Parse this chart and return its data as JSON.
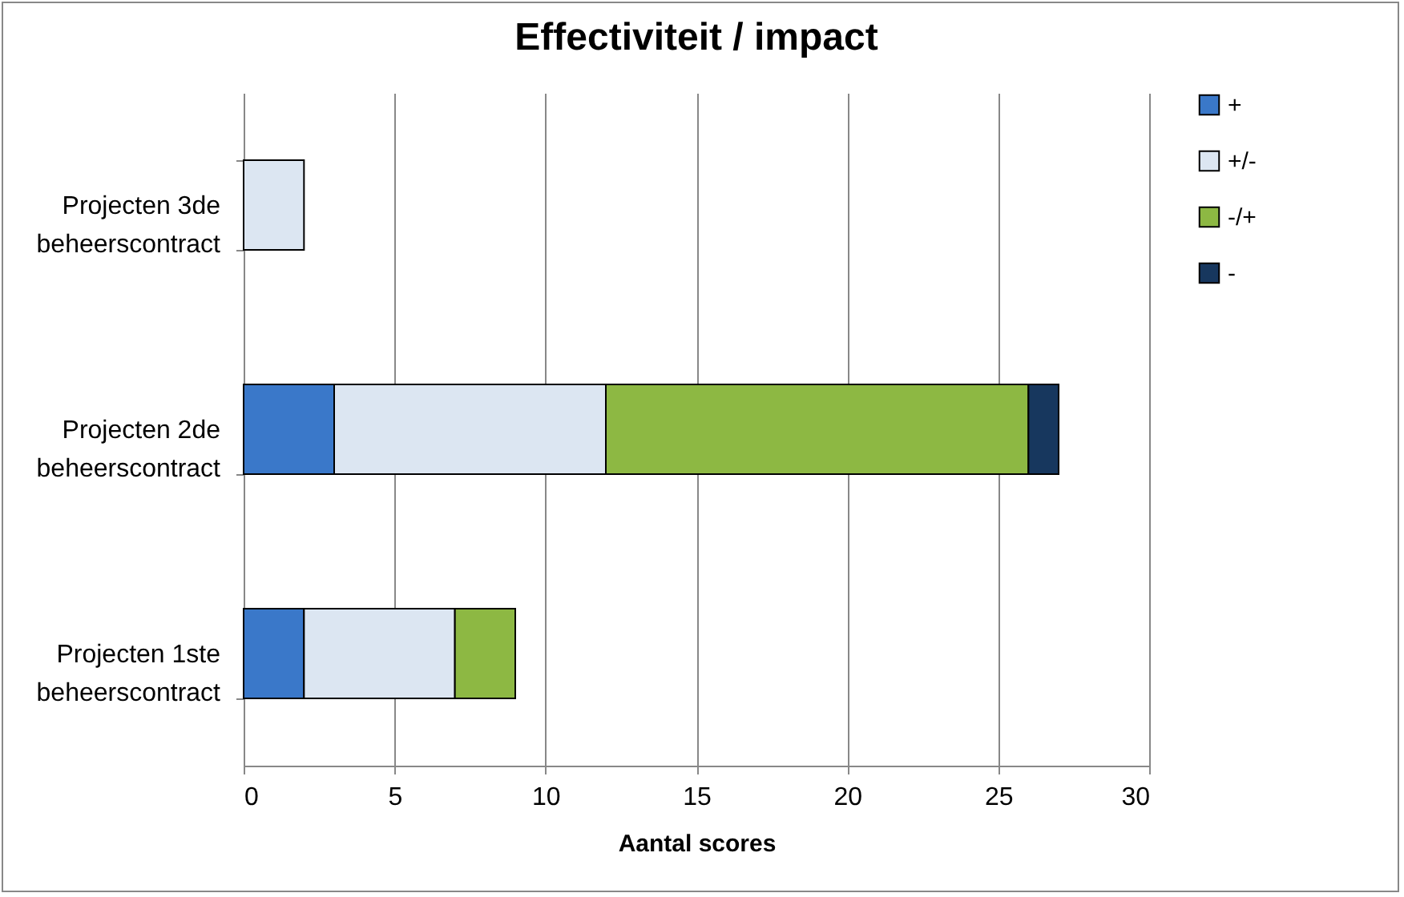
{
  "chart_data": {
    "type": "bar",
    "orientation": "horizontal",
    "stacked": true,
    "title": "Effectiviteit / impact",
    "xlabel": "Aantal scores",
    "categories": [
      "Projecten 3de beheerscontract",
      "Projecten 2de beheerscontract",
      "Projecten 1ste beheerscontract"
    ],
    "series": [
      {
        "name": "+",
        "color": "#3a78c9",
        "values": [
          null,
          3,
          2
        ]
      },
      {
        "name": "+/-",
        "color": "#dce6f2",
        "values": [
          2,
          9,
          5
        ]
      },
      {
        "name": "-/+",
        "color": "#8db843",
        "values": [
          null,
          14,
          2
        ]
      },
      {
        "name": "-",
        "color": "#17375e",
        "values": [
          null,
          1,
          null
        ]
      }
    ],
    "xlim": [
      0,
      30
    ],
    "xticks": [
      0,
      5,
      10,
      15,
      20,
      25,
      30
    ],
    "grid": "x",
    "legend": "right"
  }
}
